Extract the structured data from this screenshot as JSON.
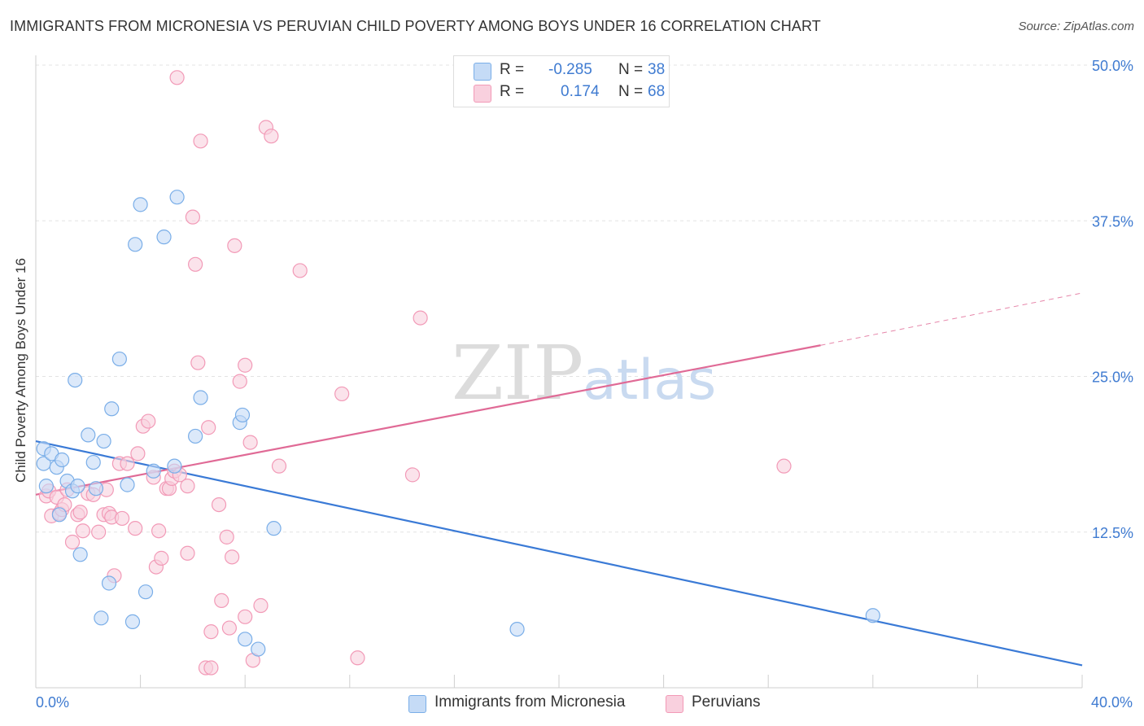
{
  "chart_data": {
    "type": "scatter",
    "title": "IMMIGRANTS FROM MICRONESIA VS PERUVIAN CHILD POVERTY AMONG BOYS UNDER 16 CORRELATION CHART",
    "source": "Source: ZipAtlas.com",
    "xlabel": "",
    "ylabel": "Child Poverty Among Boys Under 16",
    "xlim": [
      0,
      40
    ],
    "ylim": [
      0,
      50
    ],
    "x_tick_labels": [
      "0.0%",
      "40.0%"
    ],
    "y_ticks": [
      12.5,
      25.0,
      37.5,
      50.0
    ],
    "y_tick_labels": [
      "12.5%",
      "25.0%",
      "37.5%",
      "50.0%"
    ],
    "watermark": {
      "zip": "ZIP",
      "atlas": "atlas"
    },
    "legend_stats": [
      {
        "r_label": "R =",
        "r_value": "-0.285",
        "n_label": "N =",
        "n_value": "38"
      },
      {
        "r_label": "R =",
        "r_value": "0.174",
        "n_label": "N =",
        "n_value": "68"
      }
    ],
    "series": [
      {
        "name": "Immigrants from Micronesia",
        "color": "#7aaee8",
        "fill": "#c5dbf6",
        "line_color": "#3a7ad6",
        "trend": {
          "x0": 0,
          "y0": 19.8,
          "x1": 40,
          "y1": 1.8
        },
        "points": [
          [
            0.3,
            19.2
          ],
          [
            0.3,
            18.0
          ],
          [
            0.4,
            16.2
          ],
          [
            0.6,
            18.8
          ],
          [
            0.8,
            17.7
          ],
          [
            0.9,
            13.9
          ],
          [
            1.0,
            18.3
          ],
          [
            1.2,
            16.6
          ],
          [
            1.4,
            15.8
          ],
          [
            1.5,
            24.7
          ],
          [
            1.6,
            16.2
          ],
          [
            1.7,
            10.7
          ],
          [
            2.0,
            20.3
          ],
          [
            2.2,
            18.1
          ],
          [
            2.3,
            16.0
          ],
          [
            2.5,
            5.6
          ],
          [
            2.6,
            19.8
          ],
          [
            2.8,
            8.4
          ],
          [
            2.9,
            22.4
          ],
          [
            3.2,
            26.4
          ],
          [
            3.5,
            16.3
          ],
          [
            3.7,
            5.3
          ],
          [
            3.8,
            35.6
          ],
          [
            4.0,
            38.8
          ],
          [
            4.2,
            7.7
          ],
          [
            4.5,
            17.4
          ],
          [
            4.9,
            36.2
          ],
          [
            5.3,
            17.8
          ],
          [
            5.4,
            39.4
          ],
          [
            6.1,
            20.2
          ],
          [
            6.3,
            23.3
          ],
          [
            7.8,
            21.3
          ],
          [
            7.9,
            21.9
          ],
          [
            8.0,
            3.9
          ],
          [
            8.5,
            3.1
          ],
          [
            9.1,
            12.8
          ],
          [
            18.4,
            4.7
          ],
          [
            32.0,
            5.8
          ]
        ]
      },
      {
        "name": "Peruvians",
        "color": "#f29ab7",
        "fill": "#f9d0de",
        "line_color": "#e06a96",
        "trend": {
          "x0": 0,
          "y0": 15.5,
          "x1": 30.0,
          "y1": 27.5,
          "dash_x1": 40,
          "dash_y1": 31.7
        },
        "points": [
          [
            0.4,
            15.4
          ],
          [
            0.5,
            15.8
          ],
          [
            0.6,
            13.8
          ],
          [
            0.8,
            15.3
          ],
          [
            0.9,
            14.0
          ],
          [
            1.0,
            14.3
          ],
          [
            1.1,
            14.7
          ],
          [
            1.2,
            15.9
          ],
          [
            1.4,
            11.7
          ],
          [
            1.6,
            13.9
          ],
          [
            1.7,
            14.1
          ],
          [
            1.8,
            12.6
          ],
          [
            2.0,
            15.6
          ],
          [
            2.2,
            15.5
          ],
          [
            2.4,
            12.5
          ],
          [
            2.6,
            13.9
          ],
          [
            2.7,
            15.9
          ],
          [
            2.8,
            14.0
          ],
          [
            2.9,
            13.7
          ],
          [
            3.0,
            9.0
          ],
          [
            3.2,
            18.0
          ],
          [
            3.3,
            13.6
          ],
          [
            3.5,
            18.0
          ],
          [
            3.8,
            12.8
          ],
          [
            3.9,
            18.8
          ],
          [
            4.1,
            21.0
          ],
          [
            4.3,
            21.4
          ],
          [
            4.5,
            16.9
          ],
          [
            4.6,
            9.7
          ],
          [
            4.7,
            12.6
          ],
          [
            4.8,
            10.4
          ],
          [
            5.0,
            16.0
          ],
          [
            5.1,
            16.0
          ],
          [
            5.2,
            16.8
          ],
          [
            5.3,
            17.4
          ],
          [
            5.4,
            49.0
          ],
          [
            5.5,
            17.1
          ],
          [
            5.8,
            10.8
          ],
          [
            6.0,
            37.8
          ],
          [
            6.1,
            34.0
          ],
          [
            6.2,
            26.1
          ],
          [
            6.3,
            43.9
          ],
          [
            6.6,
            20.9
          ],
          [
            6.5,
            1.6
          ],
          [
            6.7,
            1.6
          ],
          [
            6.7,
            4.5
          ],
          [
            7.0,
            14.7
          ],
          [
            7.1,
            7.0
          ],
          [
            7.3,
            12.1
          ],
          [
            7.5,
            10.5
          ],
          [
            7.6,
            35.5
          ],
          [
            7.8,
            24.6
          ],
          [
            8.0,
            25.9
          ],
          [
            8.0,
            5.7
          ],
          [
            8.2,
            19.7
          ],
          [
            8.3,
            2.2
          ],
          [
            8.6,
            6.6
          ],
          [
            8.8,
            45.0
          ],
          [
            9.0,
            44.3
          ],
          [
            9.3,
            17.8
          ],
          [
            10.1,
            33.5
          ],
          [
            11.7,
            23.6
          ],
          [
            12.3,
            2.4
          ],
          [
            14.4,
            17.1
          ],
          [
            14.7,
            29.7
          ],
          [
            28.6,
            17.8
          ],
          [
            7.4,
            4.8
          ],
          [
            5.8,
            16.2
          ]
        ]
      }
    ]
  }
}
